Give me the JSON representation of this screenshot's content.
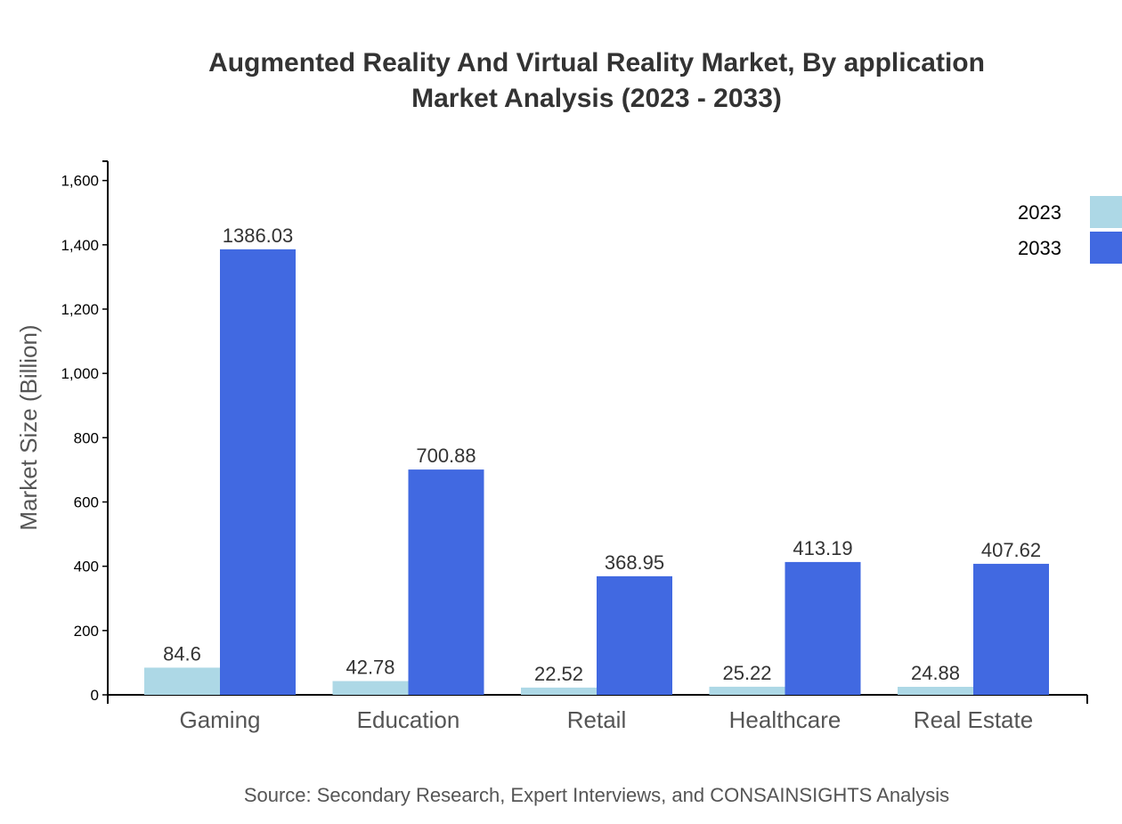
{
  "chart_data": {
    "type": "bar",
    "title_line1": "Augmented Reality And Virtual Reality Market, By application",
    "title_line2": "Market Analysis (2023 - 2033)",
    "ylabel": "Market Size (Billion)",
    "xlabel": "",
    "source": "Source: Secondary Research, Expert Interviews, and CONSAINSIGHTS Analysis",
    "categories": [
      "Gaming",
      "Education",
      "Retail",
      "Healthcare",
      "Real Estate"
    ],
    "series": [
      {
        "name": "2023",
        "color": "#add8e6",
        "values": [
          84.6,
          42.78,
          22.52,
          25.22,
          24.88
        ],
        "labels": [
          "84.6",
          "42.78",
          "22.52",
          "25.22",
          "24.88"
        ]
      },
      {
        "name": "2033",
        "color": "#4169e1",
        "values": [
          1386.03,
          700.88,
          368.95,
          413.19,
          407.62
        ],
        "labels": [
          "1386.03",
          "700.88",
          "368.95",
          "413.19",
          "407.62"
        ]
      }
    ],
    "ylim": [
      0,
      1660
    ],
    "yticks": [
      0,
      200,
      400,
      600,
      800,
      1000,
      1200,
      1400,
      1600
    ],
    "ytick_labels": [
      "0",
      "200",
      "400",
      "600",
      "800",
      "1,000",
      "1,200",
      "1,400",
      "1,600"
    ],
    "grid": false,
    "legend_position": "top-right"
  }
}
